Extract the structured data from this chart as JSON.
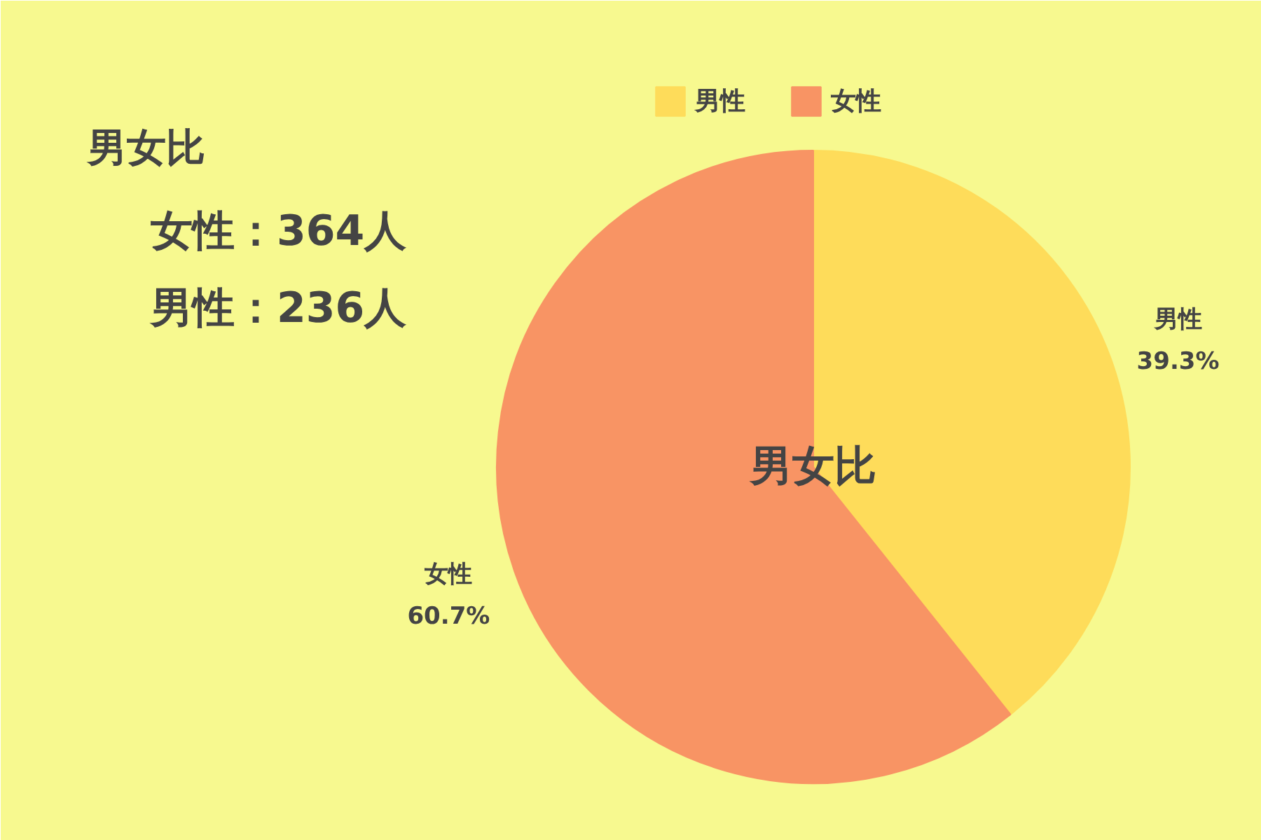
{
  "chart_data": {
    "type": "pie",
    "title": "男女比",
    "categories": [
      "男性",
      "女性"
    ],
    "values": [
      39.3,
      60.7
    ],
    "value_labels": [
      "39.3%",
      "60.7%"
    ],
    "colors": [
      "#fedc5a",
      "#f89464"
    ],
    "legend": "top",
    "annotations": [
      "女性：364人",
      "男性：236人",
      "男女比"
    ]
  }
}
